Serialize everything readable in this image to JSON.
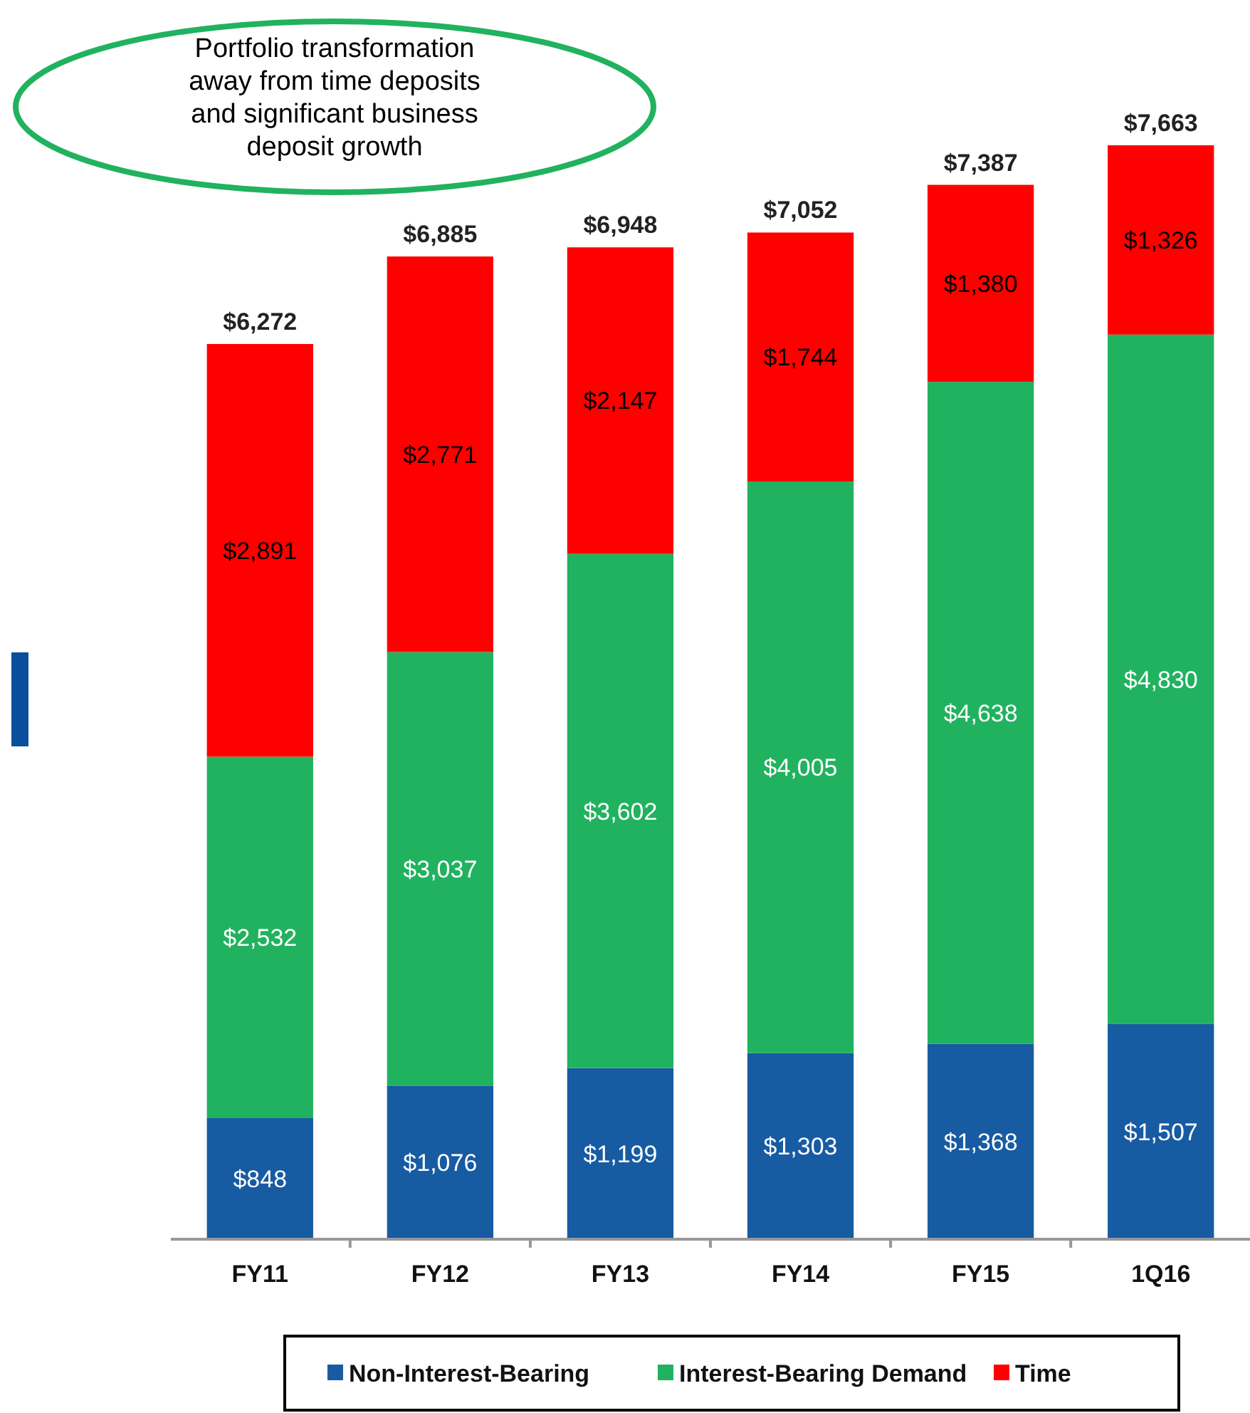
{
  "chart_data": {
    "type": "bar",
    "stacked": true,
    "categories": [
      "FY11",
      "FY12",
      "FY13",
      "FY14",
      "FY15",
      "1Q16"
    ],
    "series": [
      {
        "name": "Non-Interest-Bearing",
        "color": "#175ba3",
        "values": [
          848,
          1076,
          1199,
          1303,
          1368,
          1507
        ],
        "value_labels": [
          "$848",
          "$1,076",
          "$1,199",
          "$1,303",
          "$1,368",
          "$1,507"
        ]
      },
      {
        "name": "Interest-Bearing Demand",
        "color": "#21b25f",
        "values": [
          2532,
          3037,
          3602,
          4005,
          4638,
          4830
        ],
        "value_labels": [
          "$2,532",
          "$3,037",
          "$3,602",
          "$4,005",
          "$4,638",
          "$4,830"
        ]
      },
      {
        "name": "Time",
        "color": "#ff0000",
        "values": [
          2891,
          2771,
          2147,
          1744,
          1380,
          1326
        ],
        "value_labels": [
          "$2,891",
          "$2,771",
          "$2,147",
          "$1,744",
          "$1,380",
          "$1,326"
        ]
      }
    ],
    "totals": [
      "$6,272",
      "$6,885",
      "$6,948",
      "$7,052",
      "$7,387",
      "$7,663"
    ],
    "legend": "bottom",
    "annotations": [
      "Portfolio transformation\naway from time deposits\nand significant business\ndeposit growth"
    ]
  }
}
